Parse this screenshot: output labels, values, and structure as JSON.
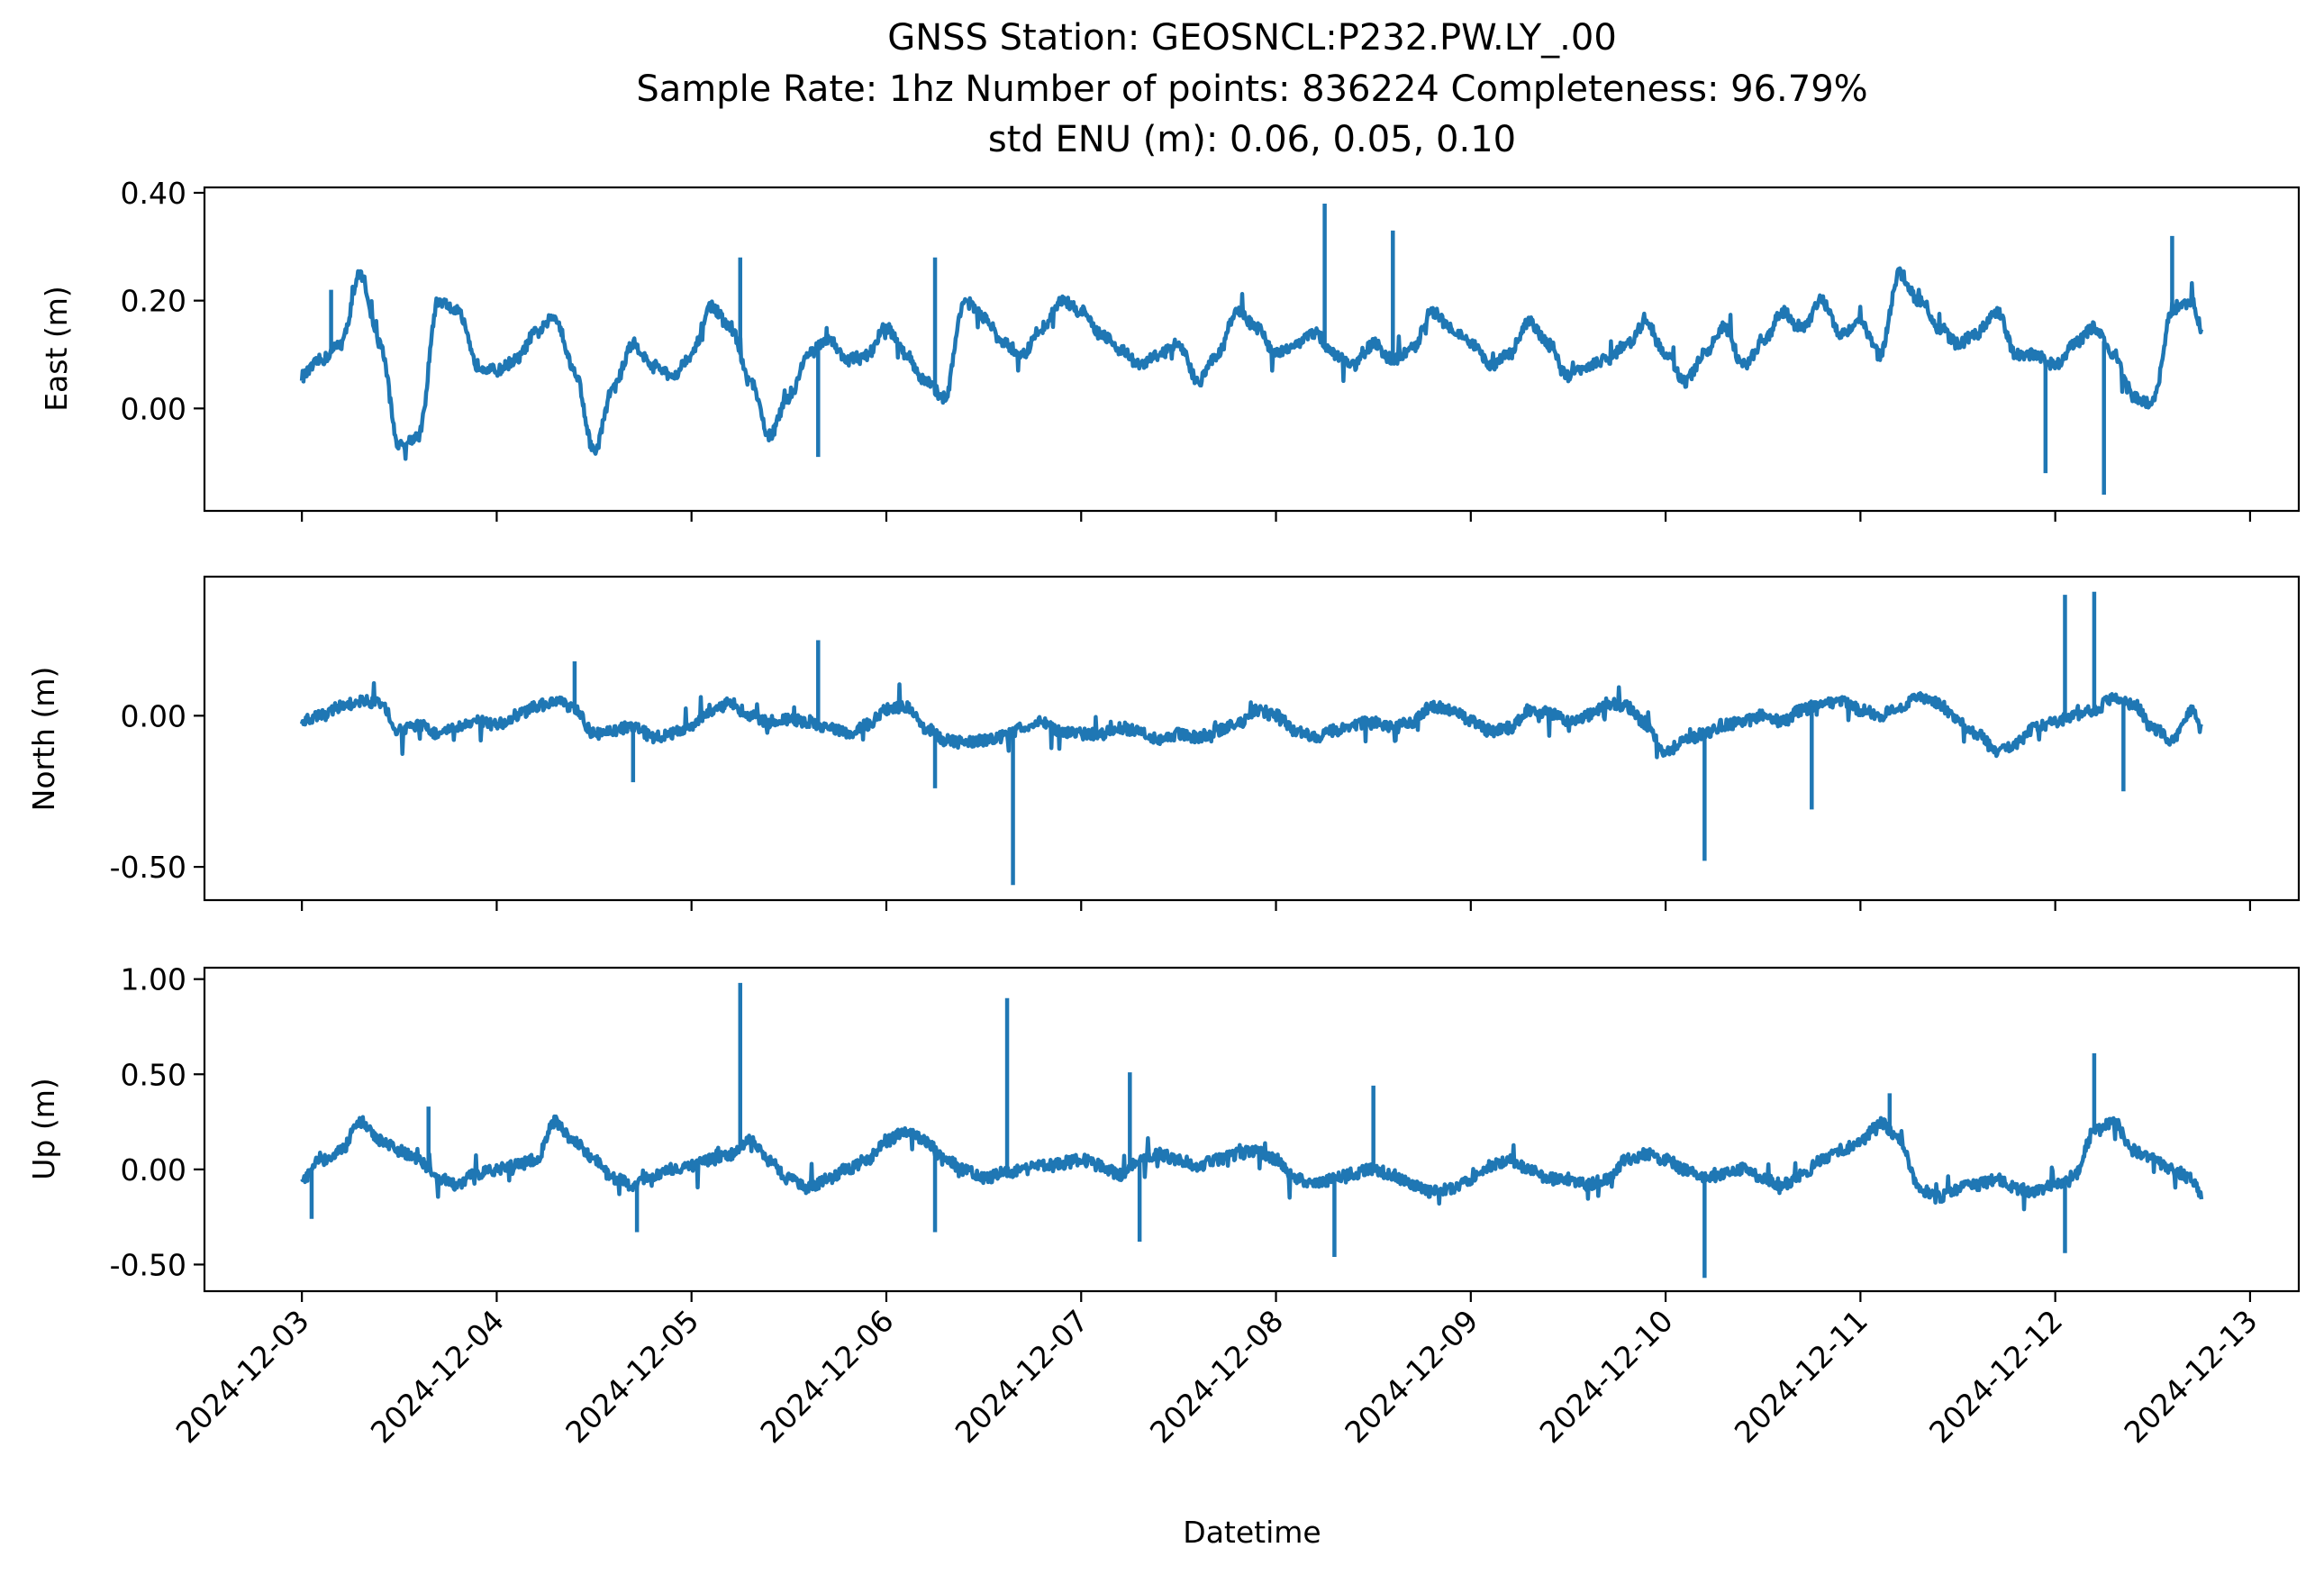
{
  "chart_data": {
    "type": "line",
    "title_lines": [
      "GNSS Station: GEOSNCL:P232.PW.LY_.00",
      "Sample Rate: 1hz   Number of points: 836224    Completeness:  96.79%",
      "std ENU (m):  0.06, 0.05, 0.10"
    ],
    "xlabel": "Datetime",
    "x_ticks": [
      "2024-12-03",
      "2024-12-04",
      "2024-12-05",
      "2024-12-06",
      "2024-12-07",
      "2024-12-08",
      "2024-12-09",
      "2024-12-10",
      "2024-12-11",
      "2024-12-12",
      "2024-12-13"
    ],
    "x_range": [
      "2024-12-02 12:00",
      "2024-12-13 06:00"
    ],
    "x_data_range": [
      "2024-12-03 00:00",
      "2024-12-12 18:00"
    ],
    "line_color": "#1f77b4",
    "panels": [
      {
        "ylabel": "East (m)",
        "ylim": [
          -0.19,
          0.41
        ],
        "yticks": [
          0.0,
          0.2,
          0.4
        ],
        "ytick_labels": [
          "0.00",
          "0.20",
          "0.40"
        ],
        "x_days": [
          0,
          0.1,
          0.2,
          0.3,
          0.4,
          0.5,
          0.6,
          0.7,
          0.8,
          0.9,
          1.0,
          1.1,
          1.2,
          1.3,
          1.4,
          1.5,
          1.6,
          1.7,
          1.8,
          1.9,
          2.0,
          2.1,
          2.2,
          2.3,
          2.4,
          2.5,
          2.6,
          2.7,
          2.8,
          2.9,
          3.0,
          3.1,
          3.2,
          3.3,
          3.4,
          3.5,
          3.6,
          3.7,
          3.8,
          3.9,
          4.0,
          4.1,
          4.2,
          4.3,
          4.4,
          4.5,
          4.6,
          4.7,
          4.8,
          4.9,
          5.0,
          5.1,
          5.2,
          5.3,
          5.4,
          5.5,
          5.6,
          5.7,
          5.8,
          5.9,
          6.0,
          6.1,
          6.2,
          6.3,
          6.4,
          6.5,
          6.6,
          6.7,
          6.8,
          6.9,
          7.0,
          7.1,
          7.2,
          7.3,
          7.4,
          7.5,
          7.6,
          7.7,
          7.8,
          7.9,
          8.0,
          8.1,
          8.2,
          8.3,
          8.4,
          8.5,
          8.6,
          8.7,
          8.8,
          8.9,
          9.0,
          9.1,
          9.2,
          9.3,
          9.4,
          9.5,
          9.6,
          9.7,
          9.75
        ],
        "values": [
          0.06,
          0.09,
          0.12,
          0.25,
          0.12,
          -0.07,
          -0.05,
          0.2,
          0.18,
          0.08,
          0.07,
          0.09,
          0.14,
          0.17,
          0.07,
          -0.08,
          0.04,
          0.12,
          0.08,
          0.06,
          0.1,
          0.19,
          0.15,
          0.05,
          -0.05,
          0.02,
          0.1,
          0.13,
          0.09,
          0.1,
          0.15,
          0.1,
          0.05,
          0.02,
          0.2,
          0.17,
          0.12,
          0.1,
          0.15,
          0.2,
          0.18,
          0.14,
          0.11,
          0.08,
          0.1,
          0.12,
          0.05,
          0.1,
          0.18,
          0.15,
          0.1,
          0.12,
          0.14,
          0.1,
          0.08,
          0.12,
          0.09,
          0.11,
          0.18,
          0.15,
          0.12,
          0.08,
          0.1,
          0.16,
          0.12,
          0.06,
          0.08,
          0.09,
          0.12,
          0.16,
          0.1,
          0.05,
          0.1,
          0.15,
          0.08,
          0.12,
          0.18,
          0.15,
          0.2,
          0.14,
          0.16,
          0.1,
          0.25,
          0.2,
          0.15,
          0.12,
          0.14,
          0.18,
          0.1,
          0.1,
          0.08,
          0.12,
          0.15,
          0.1,
          0.02,
          0.01,
          0.18,
          0.2,
          0.15
        ],
        "spikes": [
          {
            "x_day": 5.25,
            "value": 0.38
          },
          {
            "x_day": 2.25,
            "value": 0.28
          },
          {
            "x_day": 5.6,
            "value": 0.33
          },
          {
            "x_day": 3.25,
            "value": 0.28
          },
          {
            "x_day": 9.6,
            "value": 0.32
          },
          {
            "x_day": 9.25,
            "value": -0.16
          },
          {
            "x_day": 8.95,
            "value": -0.12
          },
          {
            "x_day": 2.65,
            "value": -0.09
          },
          {
            "x_day": 0.15,
            "value": 0.22
          }
        ]
      },
      {
        "ylabel": "North (m)",
        "ylim": [
          -0.61,
          0.46
        ],
        "yticks": [
          0.0,
          -0.5
        ],
        "ytick_labels": [
          "0.00",
          "-0.50"
        ],
        "x_days": [
          0,
          0.1,
          0.2,
          0.3,
          0.4,
          0.5,
          0.6,
          0.7,
          0.8,
          0.9,
          1.0,
          1.1,
          1.2,
          1.3,
          1.4,
          1.5,
          1.6,
          1.7,
          1.8,
          1.9,
          2.0,
          2.1,
          2.2,
          2.3,
          2.4,
          2.5,
          2.6,
          2.7,
          2.8,
          2.9,
          3.0,
          3.1,
          3.2,
          3.3,
          3.4,
          3.5,
          3.6,
          3.7,
          3.8,
          3.9,
          4.0,
          4.1,
          4.2,
          4.3,
          4.4,
          4.5,
          4.6,
          4.7,
          4.8,
          4.9,
          5.0,
          5.1,
          5.2,
          5.3,
          5.4,
          5.5,
          5.6,
          5.7,
          5.8,
          5.9,
          6.0,
          6.1,
          6.2,
          6.3,
          6.4,
          6.5,
          6.6,
          6.7,
          6.8,
          6.9,
          7.0,
          7.1,
          7.2,
          7.3,
          7.4,
          7.5,
          7.6,
          7.7,
          7.8,
          7.9,
          8.0,
          8.1,
          8.2,
          8.3,
          8.4,
          8.5,
          8.6,
          8.7,
          8.8,
          8.9,
          9.0,
          9.1,
          9.2,
          9.3,
          9.4,
          9.5,
          9.6,
          9.7,
          9.75
        ],
        "values": [
          -0.02,
          0.0,
          0.03,
          0.05,
          0.04,
          -0.05,
          -0.03,
          -0.06,
          -0.04,
          -0.02,
          -0.03,
          0.0,
          0.03,
          0.05,
          0.02,
          -0.06,
          -0.05,
          -0.03,
          -0.07,
          -0.06,
          -0.03,
          0.02,
          0.04,
          0.0,
          -0.02,
          -0.01,
          -0.02,
          -0.04,
          -0.06,
          -0.03,
          0.02,
          0.03,
          -0.04,
          -0.08,
          -0.09,
          -0.08,
          -0.07,
          -0.04,
          -0.02,
          -0.05,
          -0.06,
          -0.06,
          -0.04,
          -0.05,
          -0.08,
          -0.06,
          -0.07,
          -0.05,
          -0.03,
          0.02,
          0.0,
          -0.05,
          -0.07,
          -0.05,
          -0.03,
          -0.02,
          -0.04,
          -0.02,
          0.03,
          0.02,
          -0.02,
          -0.05,
          -0.04,
          0.02,
          0.01,
          -0.02,
          0.0,
          0.04,
          0.03,
          -0.03,
          -0.12,
          -0.08,
          -0.06,
          -0.03,
          -0.02,
          0.0,
          -0.02,
          0.02,
          0.04,
          0.05,
          0.02,
          0.0,
          0.03,
          0.06,
          0.04,
          -0.02,
          -0.06,
          -0.12,
          -0.09,
          -0.04,
          -0.02,
          0.0,
          0.02,
          0.06,
          0.04,
          -0.04,
          -0.08,
          0.02,
          -0.04
        ],
        "spikes": [
          {
            "x_day": 3.65,
            "value": -0.56
          },
          {
            "x_day": 7.2,
            "value": -0.48
          },
          {
            "x_day": 9.05,
            "value": 0.4
          },
          {
            "x_day": 9.2,
            "value": 0.41
          },
          {
            "x_day": 2.65,
            "value": 0.25
          },
          {
            "x_day": 1.4,
            "value": 0.18
          },
          {
            "x_day": 7.75,
            "value": -0.31
          },
          {
            "x_day": 3.25,
            "value": -0.24
          },
          {
            "x_day": 9.35,
            "value": -0.25
          },
          {
            "x_day": 1.7,
            "value": -0.22
          }
        ]
      },
      {
        "ylabel": "Up (m)",
        "ylim": [
          -0.64,
          1.06
        ],
        "yticks": [
          1.0,
          0.5,
          0.0,
          -0.5
        ],
        "ytick_labels": [
          "1.00",
          "0.50",
          "0.00",
          "-0.50"
        ],
        "x_days": [
          0,
          0.1,
          0.2,
          0.3,
          0.4,
          0.5,
          0.6,
          0.7,
          0.8,
          0.9,
          1.0,
          1.1,
          1.2,
          1.3,
          1.4,
          1.5,
          1.6,
          1.7,
          1.8,
          1.9,
          2.0,
          2.1,
          2.2,
          2.3,
          2.4,
          2.5,
          2.6,
          2.7,
          2.8,
          2.9,
          3.0,
          3.1,
          3.2,
          3.3,
          3.4,
          3.5,
          3.6,
          3.7,
          3.8,
          3.9,
          4.0,
          4.1,
          4.2,
          4.3,
          4.4,
          4.5,
          4.6,
          4.7,
          4.8,
          4.9,
          5.0,
          5.1,
          5.2,
          5.3,
          5.4,
          5.5,
          5.6,
          5.7,
          5.8,
          5.9,
          6.0,
          6.1,
          6.2,
          6.3,
          6.4,
          6.5,
          6.6,
          6.7,
          6.8,
          6.9,
          7.0,
          7.1,
          7.2,
          7.3,
          7.4,
          7.5,
          7.6,
          7.7,
          7.8,
          7.9,
          8.0,
          8.1,
          8.2,
          8.3,
          8.4,
          8.5,
          8.6,
          8.7,
          8.8,
          8.9,
          9.0,
          9.1,
          9.2,
          9.3,
          9.4,
          9.5,
          9.6,
          9.7,
          9.75
        ],
        "values": [
          -0.05,
          0.05,
          0.1,
          0.25,
          0.15,
          0.1,
          0.05,
          -0.05,
          -0.08,
          -0.02,
          0.0,
          0.02,
          0.05,
          0.25,
          0.15,
          0.05,
          -0.05,
          -0.08,
          -0.03,
          0.0,
          0.02,
          0.05,
          0.08,
          0.15,
          0.05,
          -0.05,
          -0.1,
          -0.05,
          0.0,
          0.05,
          0.15,
          0.2,
          0.15,
          0.05,
          0.0,
          -0.05,
          -0.02,
          0.0,
          0.02,
          0.03,
          0.05,
          0.02,
          -0.03,
          0.05,
          0.08,
          0.05,
          0.02,
          0.05,
          0.08,
          0.1,
          0.05,
          -0.05,
          -0.08,
          -0.05,
          -0.02,
          0.0,
          -0.03,
          -0.08,
          -0.12,
          -0.1,
          -0.05,
          0.02,
          0.05,
          0.0,
          -0.05,
          -0.05,
          -0.08,
          -0.05,
          0.05,
          0.08,
          0.05,
          0.0,
          -0.05,
          -0.02,
          0.0,
          -0.05,
          -0.08,
          -0.03,
          0.05,
          0.1,
          0.15,
          0.25,
          0.15,
          -0.1,
          -0.15,
          -0.1,
          -0.08,
          -0.05,
          -0.1,
          -0.12,
          -0.08,
          -0.03,
          0.2,
          0.25,
          0.1,
          0.05,
          0.0,
          -0.05,
          -0.15
        ],
        "spikes": [
          {
            "x_day": 2.25,
            "value": 0.98
          },
          {
            "x_day": 3.62,
            "value": 0.9
          },
          {
            "x_day": 9.2,
            "value": 0.61
          },
          {
            "x_day": 7.2,
            "value": -0.57
          },
          {
            "x_day": 5.3,
            "value": -0.46
          },
          {
            "x_day": 4.25,
            "value": 0.51
          },
          {
            "x_day": 5.5,
            "value": 0.44
          },
          {
            "x_day": 8.15,
            "value": 0.4
          },
          {
            "x_day": 9.05,
            "value": -0.44
          },
          {
            "x_day": 0.65,
            "value": 0.33
          },
          {
            "x_day": 3.25,
            "value": -0.33
          },
          {
            "x_day": 4.3,
            "value": -0.38
          },
          {
            "x_day": 1.72,
            "value": -0.33
          },
          {
            "x_day": 0.05,
            "value": -0.26
          }
        ]
      }
    ]
  }
}
